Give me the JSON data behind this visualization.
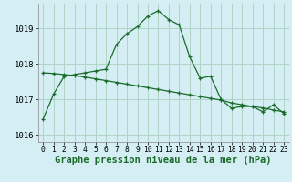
{
  "title": "",
  "xlabel": "Graphe pression niveau de la mer (hPa)",
  "ylabel": "",
  "background_color": "#d4eef4",
  "plot_bg_color": "#d4eef4",
  "grid_color": "#b0d4c8",
  "line_color": "#1a6b2a",
  "marker_color": "#1a6b2a",
  "ylim": [
    1015.8,
    1019.7
  ],
  "xlim": [
    -0.5,
    23.5
  ],
  "yticks": [
    1016,
    1017,
    1018,
    1019
  ],
  "xticks": [
    0,
    1,
    2,
    3,
    4,
    5,
    6,
    7,
    8,
    9,
    10,
    11,
    12,
    13,
    14,
    15,
    16,
    17,
    18,
    19,
    20,
    21,
    22,
    23
  ],
  "line1_x": [
    0,
    1,
    2,
    3,
    4,
    5,
    6,
    7,
    8,
    9,
    10,
    11,
    12,
    13,
    14,
    15,
    16,
    17,
    18,
    19,
    20,
    21,
    22,
    23
  ],
  "line1_y": [
    1016.45,
    1017.15,
    1017.65,
    1017.7,
    1017.75,
    1017.8,
    1017.85,
    1018.55,
    1018.85,
    1019.05,
    1019.35,
    1019.5,
    1019.25,
    1019.1,
    1018.2,
    1017.6,
    1017.65,
    1017.0,
    1016.75,
    1016.8,
    1016.8,
    1016.65,
    1016.85,
    1016.6
  ],
  "line2_x": [
    0,
    1,
    2,
    3,
    4,
    5,
    6,
    7,
    8,
    9,
    10,
    11,
    12,
    13,
    14,
    15,
    16,
    17,
    18,
    19,
    20,
    21,
    22,
    23
  ],
  "line2_y": [
    1017.75,
    1017.73,
    1017.7,
    1017.67,
    1017.63,
    1017.58,
    1017.53,
    1017.48,
    1017.43,
    1017.38,
    1017.33,
    1017.28,
    1017.23,
    1017.18,
    1017.13,
    1017.08,
    1017.03,
    1016.98,
    1016.9,
    1016.85,
    1016.8,
    1016.76,
    1016.7,
    1016.65
  ],
  "tick_fontsize": 6.5,
  "xlabel_fontsize": 7.5,
  "xlabel_fontweight": "bold",
  "xlabel_color": "#1a6b2a"
}
